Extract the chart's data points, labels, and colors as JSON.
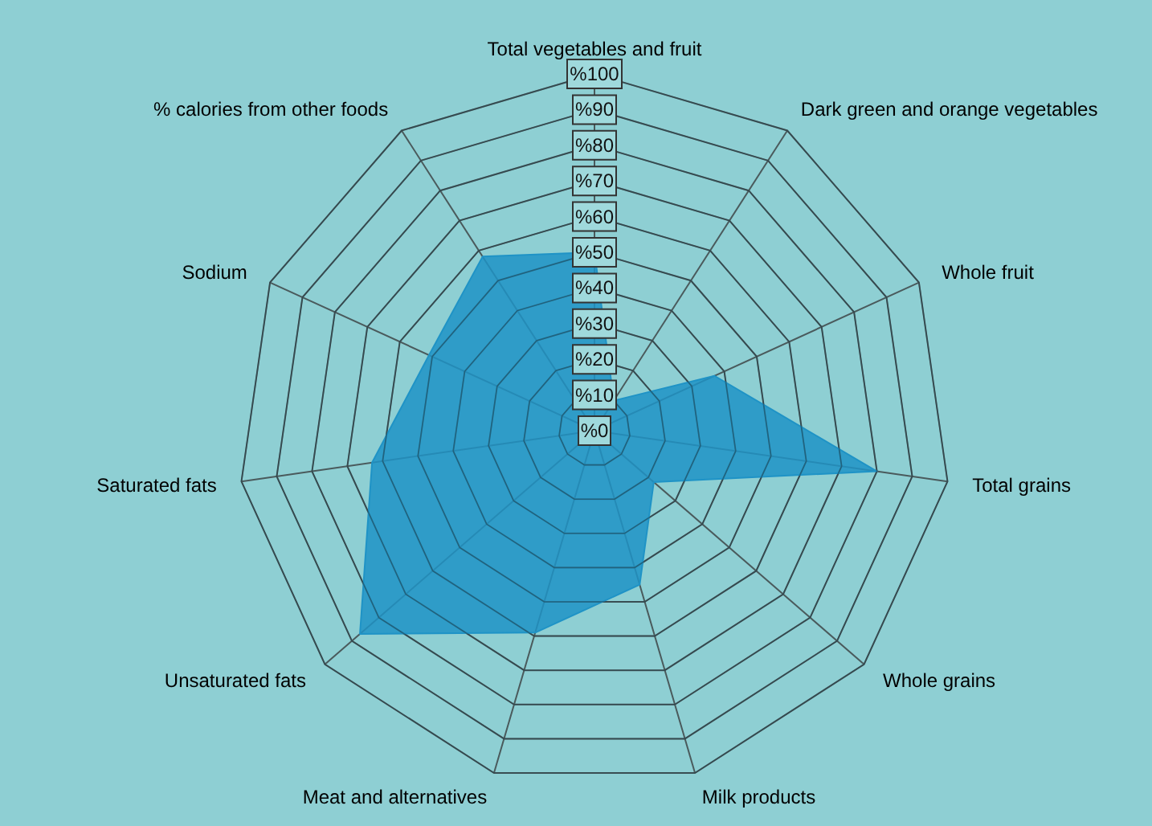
{
  "chart_data": {
    "type": "radar",
    "categories": [
      "Total vegetables and fruit",
      "Dark green and orange vegetables",
      "Whole fruit",
      "Total grains",
      "Whole grains",
      "Milk products",
      "Meat and alternatives",
      "Unsaturated fats",
      "Saturated fats",
      "Sodium",
      "% calories from other foods"
    ],
    "series": [
      {
        "color": "#1f93c6",
        "values": [
          50,
          10,
          37,
          80,
          22,
          45,
          59,
          87,
          63,
          51,
          58
        ]
      }
    ],
    "ylim": [
      0,
      100
    ],
    "yticks": [
      {
        "value": 0,
        "label": "%0"
      },
      {
        "value": 10,
        "label": "%10"
      },
      {
        "value": 20,
        "label": "%20"
      },
      {
        "value": 30,
        "label": "%30"
      },
      {
        "value": 40,
        "label": "%40"
      },
      {
        "value": 50,
        "label": "%50"
      },
      {
        "value": 60,
        "label": "%60"
      },
      {
        "value": 70,
        "label": "%70"
      },
      {
        "value": 80,
        "label": "%80"
      },
      {
        "value": 90,
        "label": "%90"
      },
      {
        "value": 100,
        "label": "%100"
      }
    ],
    "grid": true
  }
}
